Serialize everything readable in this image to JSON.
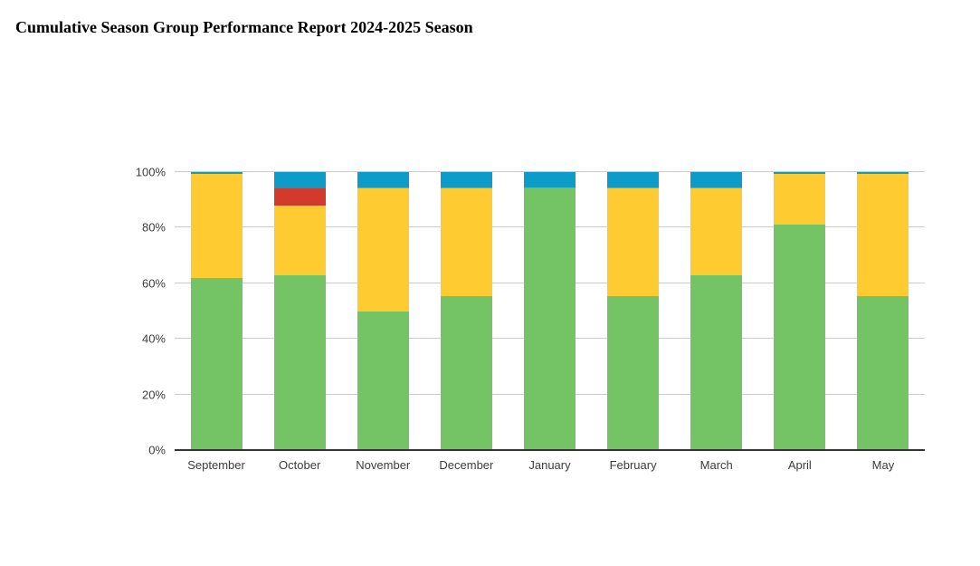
{
  "title": "Cumulative Season Group Performance Report 2024-2025 Season",
  "chart_data": {
    "type": "bar",
    "stacked": true,
    "title": "Cumulative Season Group Performance Report 2024-2025 Season",
    "xlabel": "",
    "ylabel": "",
    "ylim": [
      0,
      100
    ],
    "grid": true,
    "legend": "none",
    "y_ticks": [
      {
        "value": 0,
        "label": "0%"
      },
      {
        "value": 20,
        "label": "20%"
      },
      {
        "value": 40,
        "label": "40%"
      },
      {
        "value": 60,
        "label": "60%"
      },
      {
        "value": 80,
        "label": "80%"
      },
      {
        "value": 100,
        "label": "100%"
      }
    ],
    "categories": [
      "September",
      "October",
      "November",
      "December",
      "January",
      "February",
      "March",
      "April",
      "May"
    ],
    "series": [
      {
        "name": "green",
        "color": "#74c365",
        "values": [
          62,
          63,
          50,
          55.5,
          94,
          55.5,
          63,
          81,
          55.5
        ]
      },
      {
        "name": "yellow",
        "color": "#fecb30",
        "values": [
          37.5,
          25,
          44,
          38.5,
          0,
          38.5,
          31,
          18.5,
          44
        ]
      },
      {
        "name": "red",
        "color": "#d23b2c",
        "values": [
          0,
          6,
          0,
          0,
          0.25,
          0,
          0,
          0,
          0
        ]
      },
      {
        "name": "orange",
        "color": "#ef8733",
        "values": [
          0,
          0,
          0.5,
          0.5,
          0.25,
          0.5,
          0.5,
          0,
          0
        ]
      },
      {
        "name": "blue",
        "color": "#0d9cc7",
        "values": [
          0.5,
          6,
          5.5,
          5.5,
          5.5,
          5.5,
          5.5,
          0.5,
          0.5
        ]
      }
    ],
    "colors": {
      "gridline": "#cccccc",
      "baseline": "#333333",
      "tick_text": "#3c3c3c"
    }
  }
}
